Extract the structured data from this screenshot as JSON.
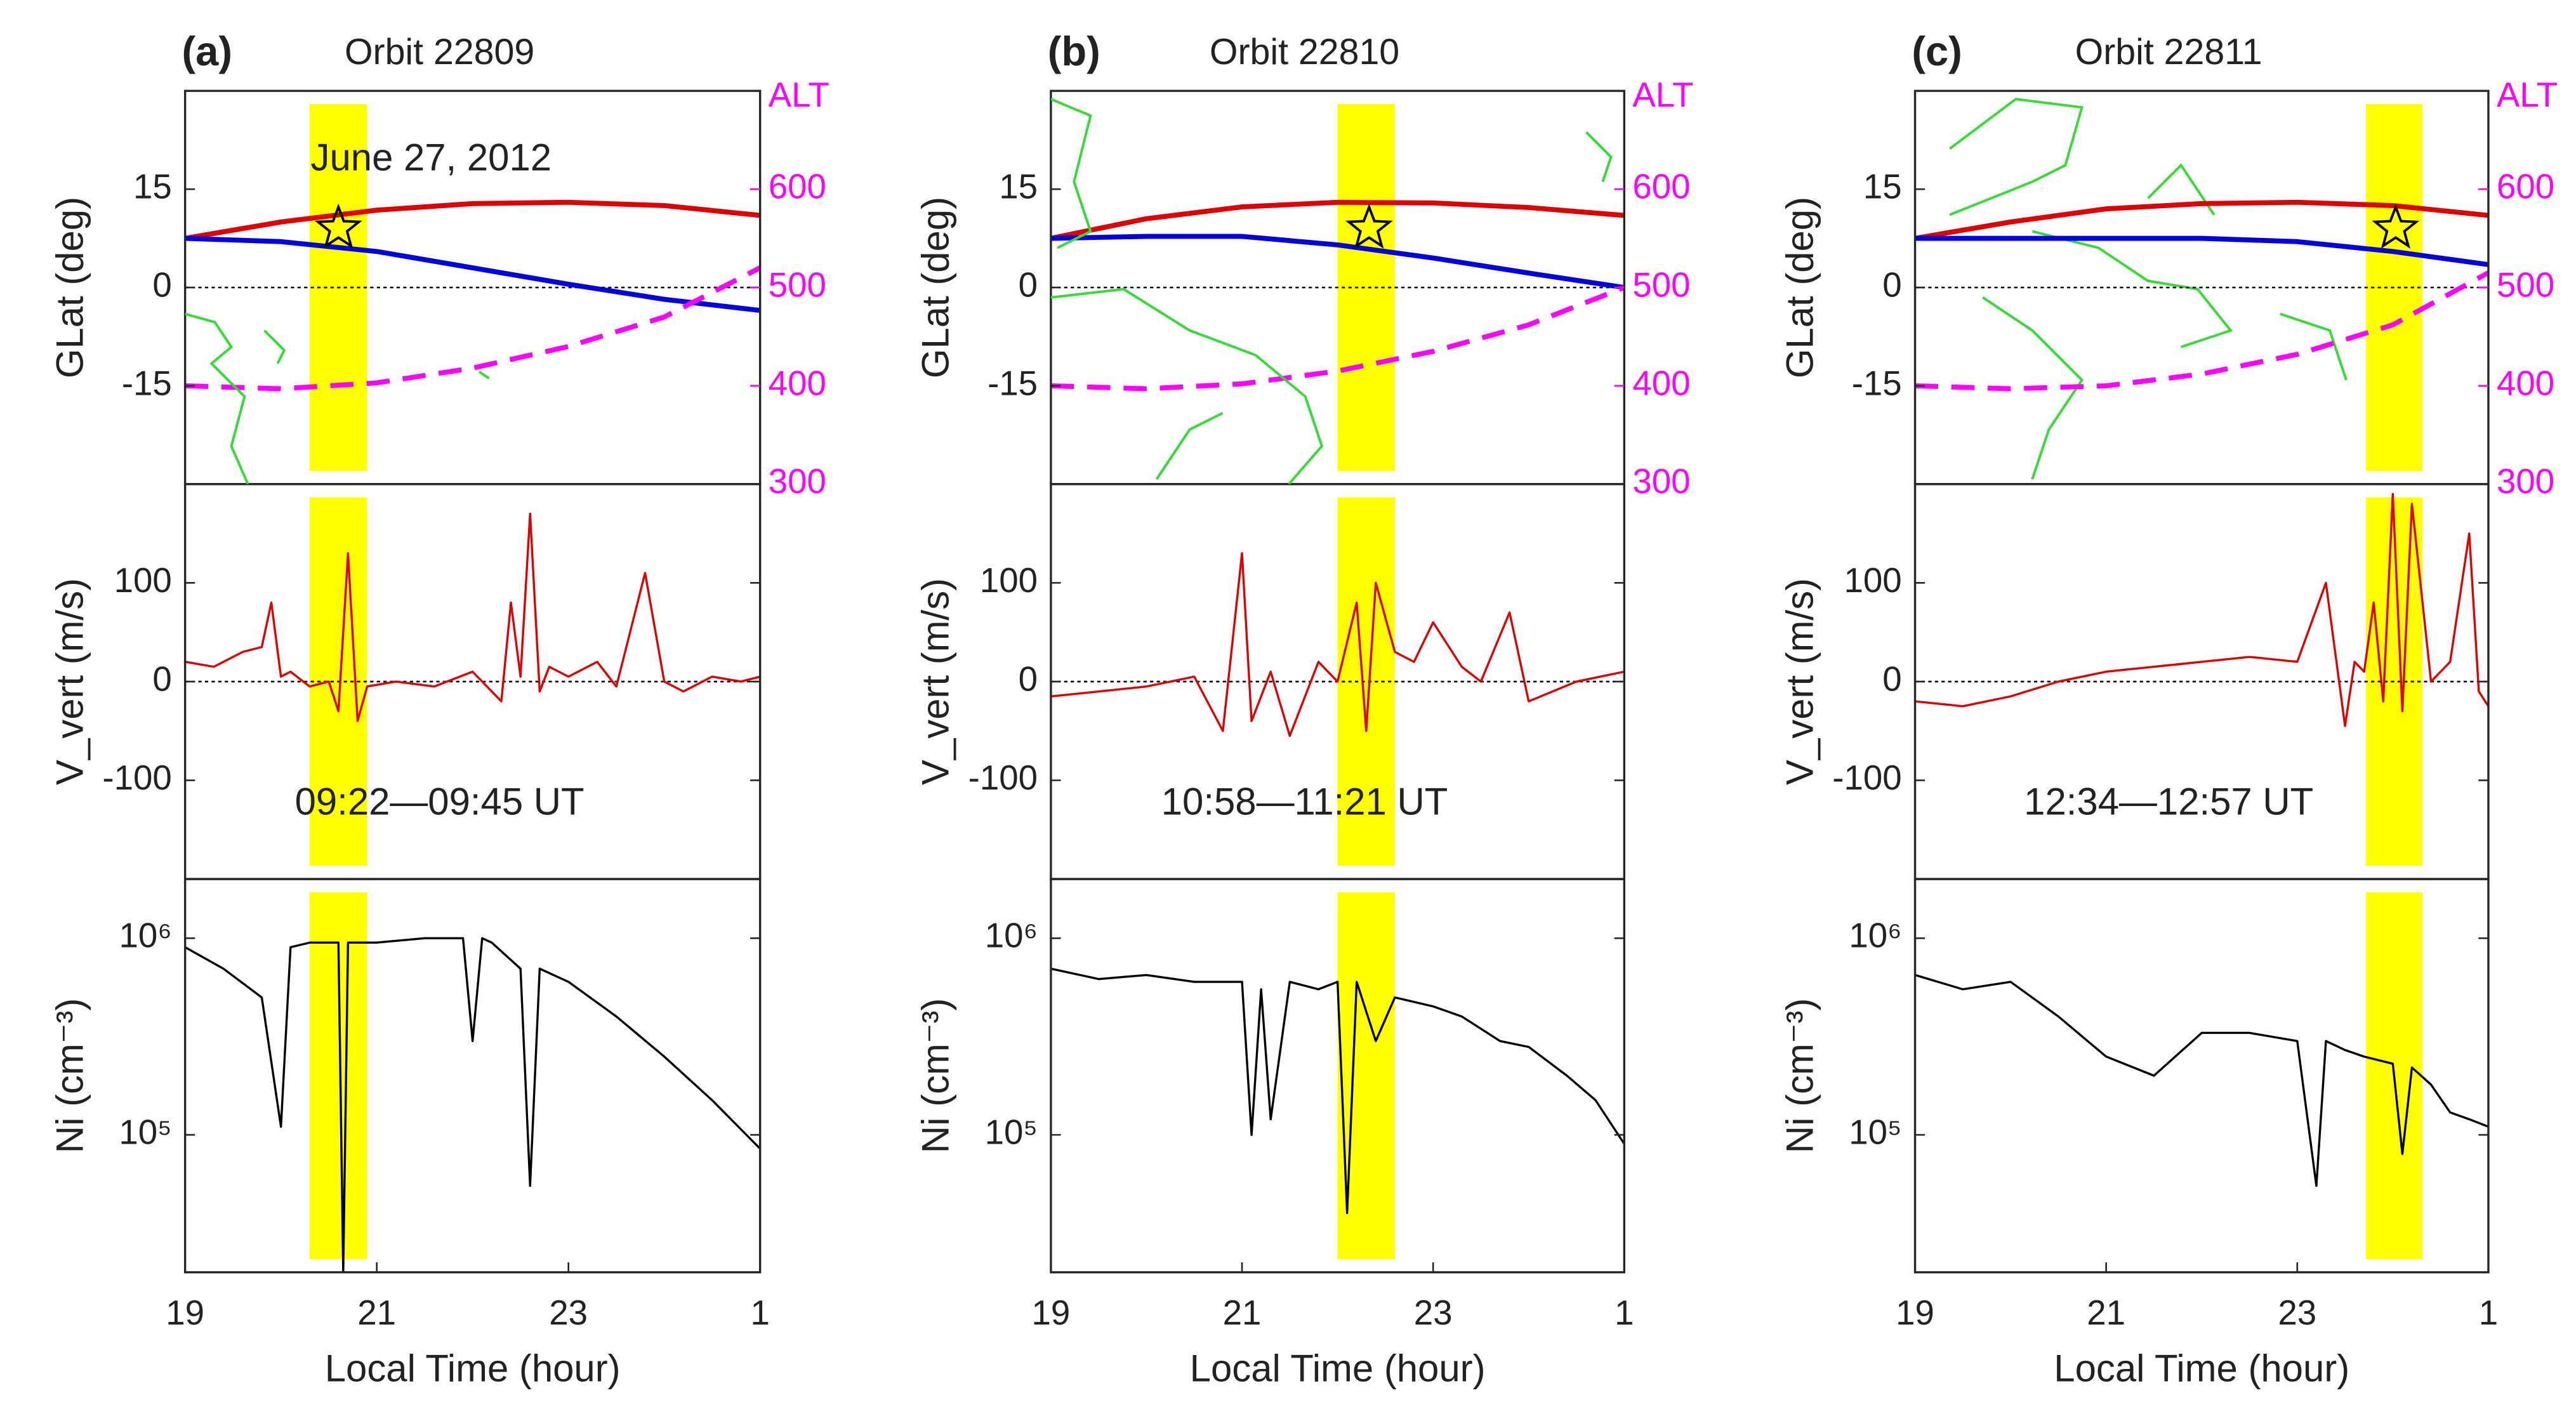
{
  "chart_data": [
    {
      "type": "line",
      "panel_label": "(a)",
      "title": "Orbit 22809",
      "annotation": "June 27, 2012",
      "ylabel": "GLat (deg)",
      "y2label": "ALT",
      "xlim": [
        19,
        25
      ],
      "ylim": [
        -30,
        30
      ],
      "yticks": [
        -15,
        0,
        15
      ],
      "y2lim": [
        300,
        700
      ],
      "y2ticks": [
        300,
        400,
        500,
        600
      ],
      "zero_line": true,
      "highlight": [
        20.3,
        20.9
      ],
      "highlight_color": "#ffff00",
      "marker": {
        "x": 20.6,
        "y": 9
      },
      "series": [
        {
          "color": "#e00000",
          "x": [
            19,
            20,
            21,
            22,
            23,
            24,
            25
          ],
          "values": [
            7.5,
            10,
            11.8,
            12.8,
            13,
            12.5,
            11
          ]
        },
        {
          "color": "#0000e0",
          "x": [
            19,
            20,
            21,
            22,
            23,
            24,
            25
          ],
          "values": [
            7.5,
            7,
            5.5,
            3,
            0.5,
            -1.8,
            -3.5
          ]
        },
        {
          "color": "#ff00ff",
          "axis": "y2",
          "dash": true,
          "x": [
            19,
            20,
            21,
            22,
            23,
            24,
            25
          ],
          "values": [
            400,
            397,
            403,
            418,
            440,
            470,
            520
          ]
        }
      ]
    },
    {
      "type": "line",
      "annotation": "09:22—09:45 UT",
      "ylabel": "V_vert (m/s)",
      "xlim": [
        19,
        25
      ],
      "ylim": [
        -200,
        200
      ],
      "yticks": [
        -100,
        0,
        100
      ],
      "zero_line": true,
      "highlight": [
        20.3,
        20.9
      ],
      "highlight_color": "#ffff00",
      "series": [
        {
          "color": "#e00000",
          "x": [
            19,
            19.3,
            19.6,
            19.8,
            19.9,
            20.0,
            20.1,
            20.3,
            20.5,
            20.6,
            20.7,
            20.8,
            20.9,
            21.2,
            21.6,
            22,
            22.3,
            22.4,
            22.5,
            22.6,
            22.7,
            22.8,
            23,
            23.3,
            23.5,
            23.8,
            24,
            24.2,
            24.5,
            24.8,
            25
          ],
          "values": [
            20,
            15,
            30,
            35,
            80,
            5,
            10,
            -5,
            0,
            -30,
            130,
            -40,
            -5,
            0,
            -5,
            10,
            -20,
            80,
            5,
            170,
            -10,
            15,
            5,
            20,
            -5,
            110,
            0,
            -10,
            5,
            0,
            5
          ]
        }
      ]
    },
    {
      "type": "line",
      "ylabel": "Ni (cm⁻³)",
      "xlabel": "Local Time (hour)",
      "log_y": true,
      "xlim": [
        19,
        25
      ],
      "xticks": [
        19,
        21,
        23,
        {
          "value": 25,
          "label": "1"
        }
      ],
      "ylim": [
        20000,
        2000000
      ],
      "yticks": [
        {
          "value": 100000,
          "label": "10⁵"
        },
        {
          "value": 1000000,
          "label": "10⁶"
        }
      ],
      "highlight": [
        20.3,
        20.9
      ],
      "highlight_color": "#ffff00",
      "series": [
        {
          "color": "#000000",
          "x": [
            19,
            19.4,
            19.8,
            20.0,
            20.1,
            20.3,
            20.6,
            20.65,
            20.7,
            21,
            21.5,
            21.9,
            22,
            22.1,
            22.2,
            22.5,
            22.6,
            22.7,
            23,
            23.5,
            24,
            24.5,
            25
          ],
          "values": [
            900000,
            700000,
            500000,
            110000,
            900000,
            950000,
            950000,
            20000,
            950000,
            950000,
            1000000,
            1000000,
            300000,
            1000000,
            950000,
            700000,
            55000,
            700000,
            600000,
            400000,
            250000,
            150000,
            85000
          ]
        }
      ]
    },
    {
      "type": "line",
      "panel_label": "(b)",
      "title": "Orbit 22810",
      "ylabel": "GLat (deg)",
      "y2label": "ALT",
      "xlim": [
        19,
        25
      ],
      "ylim": [
        -30,
        30
      ],
      "yticks": [
        -15,
        0,
        15
      ],
      "y2lim": [
        300,
        700
      ],
      "y2ticks": [
        300,
        400,
        500,
        600
      ],
      "zero_line": true,
      "highlight": [
        22.0,
        22.6
      ],
      "highlight_color": "#ffff00",
      "marker": {
        "x": 22.33,
        "y": 9
      },
      "series": [
        {
          "color": "#e00000",
          "x": [
            19,
            20,
            21,
            22,
            23,
            24,
            25
          ],
          "values": [
            7.5,
            10.5,
            12.3,
            13,
            12.9,
            12.2,
            11
          ]
        },
        {
          "color": "#0000e0",
          "x": [
            19,
            20,
            21,
            22,
            23,
            24,
            25
          ],
          "values": [
            7.5,
            7.8,
            7.8,
            6.5,
            4.5,
            2.2,
            0
          ]
        },
        {
          "color": "#ff00ff",
          "axis": "y2",
          "dash": true,
          "x": [
            19,
            20,
            21,
            22,
            23,
            24,
            25
          ],
          "values": [
            400,
            397,
            402,
            415,
            435,
            462,
            500
          ]
        }
      ]
    },
    {
      "type": "line",
      "annotation": "10:58—11:21 UT",
      "ylabel": "V_vert (m/s)",
      "xlim": [
        19,
        25
      ],
      "ylim": [
        -200,
        200
      ],
      "yticks": [
        -100,
        0,
        100
      ],
      "zero_line": true,
      "highlight": [
        22.0,
        22.6
      ],
      "highlight_color": "#ffff00",
      "series": [
        {
          "color": "#e00000",
          "x": [
            19,
            19.5,
            20,
            20.5,
            20.8,
            21,
            21.1,
            21.3,
            21.5,
            21.8,
            22,
            22.2,
            22.3,
            22.4,
            22.6,
            22.8,
            23,
            23.3,
            23.5,
            23.8,
            24,
            24.5,
            25
          ],
          "values": [
            -15,
            -10,
            -5,
            5,
            -50,
            130,
            -40,
            10,
            -55,
            20,
            0,
            80,
            -50,
            100,
            30,
            20,
            60,
            15,
            0,
            70,
            -20,
            0,
            10
          ]
        }
      ]
    },
    {
      "type": "line",
      "ylabel": "Ni (cm⁻³)",
      "xlabel": "Local Time (hour)",
      "log_y": true,
      "xlim": [
        19,
        25
      ],
      "xticks": [
        19,
        21,
        23,
        {
          "value": 25,
          "label": "1"
        }
      ],
      "ylim": [
        20000,
        2000000
      ],
      "yticks": [
        {
          "value": 100000,
          "label": "10⁵"
        },
        {
          "value": 1000000,
          "label": "10⁶"
        }
      ],
      "highlight": [
        22.0,
        22.6
      ],
      "highlight_color": "#ffff00",
      "series": [
        {
          "color": "#000000",
          "x": [
            19,
            19.5,
            20,
            20.5,
            21,
            21.1,
            21.2,
            21.3,
            21.5,
            21.8,
            22,
            22.1,
            22.2,
            22.4,
            22.6,
            23,
            23.3,
            23.7,
            24,
            24.4,
            24.7,
            25
          ],
          "values": [
            700000,
            620000,
            650000,
            600000,
            600000,
            100000,
            550000,
            120000,
            600000,
            550000,
            600000,
            40000,
            600000,
            300000,
            500000,
            450000,
            400000,
            300000,
            280000,
            200000,
            150000,
            90000
          ]
        }
      ]
    },
    {
      "type": "line",
      "panel_label": "(c)",
      "title": "Orbit 22811",
      "ylabel": "GLat (deg)",
      "y2label": "ALT",
      "xlim": [
        19,
        25
      ],
      "ylim": [
        -30,
        30
      ],
      "yticks": [
        -15,
        0,
        15
      ],
      "y2lim": [
        300,
        700
      ],
      "y2ticks": [
        300,
        400,
        500,
        600
      ],
      "zero_line": true,
      "highlight": [
        23.72,
        24.31
      ],
      "highlight_color": "#ffff00",
      "marker": {
        "x": 24.03,
        "y": 9
      },
      "series": [
        {
          "color": "#e00000",
          "x": [
            19,
            20,
            21,
            22,
            23,
            24,
            25
          ],
          "values": [
            7.5,
            10,
            12,
            12.8,
            13,
            12.5,
            11
          ]
        },
        {
          "color": "#0000e0",
          "x": [
            19,
            20,
            21,
            22,
            23,
            24,
            25
          ],
          "values": [
            7.5,
            7.5,
            7.5,
            7.5,
            7,
            5.5,
            3.5
          ]
        },
        {
          "color": "#ff00ff",
          "axis": "y2",
          "dash": true,
          "x": [
            19,
            20,
            21,
            22,
            23,
            24,
            25
          ],
          "values": [
            400,
            397,
            400,
            412,
            432,
            462,
            515
          ]
        }
      ]
    },
    {
      "type": "line",
      "annotation": "12:34—12:57 UT",
      "ylabel": "V_vert (m/s)",
      "xlim": [
        19,
        25
      ],
      "ylim": [
        -200,
        200
      ],
      "yticks": [
        -100,
        0,
        100
      ],
      "zero_line": true,
      "highlight": [
        23.72,
        24.31
      ],
      "highlight_color": "#ffff00",
      "series": [
        {
          "color": "#e00000",
          "x": [
            19,
            19.5,
            20,
            20.5,
            21,
            21.5,
            22,
            22.5,
            23,
            23.3,
            23.5,
            23.6,
            23.7,
            23.8,
            23.9,
            24,
            24.1,
            24.2,
            24.4,
            24.6,
            24.8,
            24.9,
            25
          ],
          "values": [
            -20,
            -25,
            -15,
            0,
            10,
            15,
            20,
            25,
            20,
            100,
            -45,
            20,
            10,
            80,
            -20,
            190,
            -30,
            180,
            0,
            20,
            150,
            -10,
            -25
          ]
        }
      ]
    },
    {
      "type": "line",
      "ylabel": "Ni (cm⁻³)",
      "xlabel": "Local Time (hour)",
      "log_y": true,
      "xlim": [
        19,
        25
      ],
      "xticks": [
        19,
        21,
        23,
        {
          "value": 25,
          "label": "1"
        }
      ],
      "ylim": [
        20000,
        2000000
      ],
      "yticks": [
        {
          "value": 100000,
          "label": "10⁵"
        },
        {
          "value": 1000000,
          "label": "10⁶"
        }
      ],
      "highlight": [
        23.72,
        24.31
      ],
      "highlight_color": "#ffff00",
      "series": [
        {
          "color": "#000000",
          "x": [
            19,
            19.5,
            20,
            20.5,
            21,
            21.5,
            22,
            22.5,
            23,
            23.2,
            23.3,
            23.5,
            23.7,
            24,
            24.1,
            24.2,
            24.4,
            24.6,
            24.8,
            25
          ],
          "values": [
            650000,
            550000,
            600000,
            400000,
            250000,
            200000,
            330000,
            330000,
            300000,
            55000,
            300000,
            270000,
            250000,
            230000,
            80000,
            220000,
            180000,
            130000,
            120000,
            110000
          ]
        }
      ]
    }
  ]
}
